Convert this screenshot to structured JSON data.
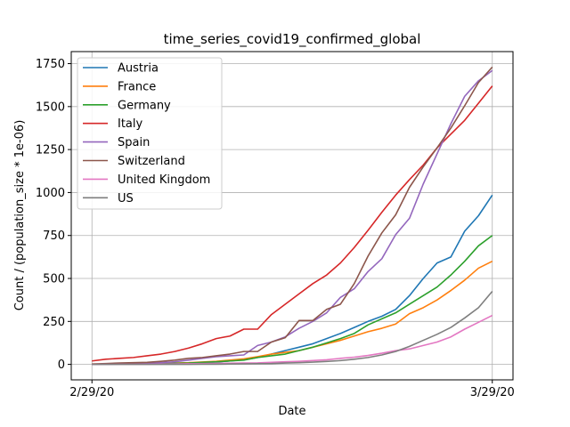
{
  "chart_data": {
    "type": "line",
    "title": "time_series_covid19_confirmed_global",
    "xlabel": "Date",
    "ylabel": "Count /  (population_size * 1e-06)",
    "x": [
      "2/29/20",
      "3/1/20",
      "3/2/20",
      "3/3/20",
      "3/4/20",
      "3/5/20",
      "3/6/20",
      "3/7/20",
      "3/8/20",
      "3/9/20",
      "3/10/20",
      "3/11/20",
      "3/12/20",
      "3/13/20",
      "3/14/20",
      "3/15/20",
      "3/16/20",
      "3/17/20",
      "3/18/20",
      "3/19/20",
      "3/20/20",
      "3/21/20",
      "3/22/20",
      "3/23/20",
      "3/24/20",
      "3/25/20",
      "3/26/20",
      "3/27/20",
      "3/28/20",
      "3/29/20"
    ],
    "xticks": [
      "2/29/20",
      "3/29/20"
    ],
    "xlim": [
      -1.5,
      30.5
    ],
    "ylim": [
      -90,
      1820
    ],
    "yticks": [
      0,
      250,
      500,
      750,
      1000,
      1250,
      1500,
      1750
    ],
    "grid": true,
    "legend_position": "upper-left",
    "series": [
      {
        "name": "Austria",
        "color": "#1f77b4",
        "values": [
          1,
          1,
          2,
          3,
          4,
          5,
          6,
          7,
          9,
          14,
          20,
          27,
          40,
          60,
          80,
          100,
          120,
          150,
          180,
          215,
          250,
          280,
          320,
          400,
          500,
          590,
          625,
          775,
          865,
          985
        ]
      },
      {
        "name": "France",
        "color": "#ff7f0e",
        "values": [
          2,
          2,
          3,
          4,
          5,
          6,
          8,
          10,
          14,
          18,
          25,
          32,
          45,
          60,
          70,
          80,
          100,
          120,
          140,
          165,
          190,
          210,
          235,
          295,
          330,
          375,
          430,
          490,
          560,
          600
        ]
      },
      {
        "name": "Germany",
        "color": "#2ca02c",
        "values": [
          1,
          2,
          2,
          2,
          3,
          4,
          6,
          8,
          12,
          15,
          20,
          25,
          40,
          50,
          60,
          80,
          100,
          125,
          150,
          180,
          230,
          265,
          300,
          350,
          400,
          450,
          520,
          600,
          690,
          750
        ]
      },
      {
        "name": "Italy",
        "color": "#d62728",
        "values": [
          20,
          30,
          35,
          40,
          50,
          60,
          75,
          95,
          120,
          150,
          165,
          205,
          205,
          290,
          350,
          410,
          470,
          520,
          590,
          680,
          780,
          885,
          985,
          1075,
          1160,
          1260,
          1340,
          1420,
          1520,
          1620
        ]
      },
      {
        "name": "Spain",
        "color": "#9467bd",
        "values": [
          1,
          2,
          3,
          5,
          7,
          10,
          15,
          25,
          35,
          45,
          50,
          55,
          110,
          130,
          160,
          210,
          250,
          300,
          390,
          440,
          540,
          615,
          755,
          850,
          1050,
          1225,
          1400,
          1560,
          1650,
          1710
        ]
      },
      {
        "name": "Switzerland",
        "color": "#8c564b",
        "values": [
          2,
          5,
          8,
          10,
          12,
          18,
          25,
          35,
          40,
          50,
          60,
          75,
          75,
          130,
          155,
          255,
          255,
          320,
          350,
          470,
          630,
          765,
          870,
          1030,
          1150,
          1260,
          1375,
          1505,
          1640,
          1730
        ]
      },
      {
        "name": "United Kingdom",
        "color": "#e377c2",
        "values": [
          0,
          0,
          1,
          1,
          1,
          2,
          3,
          4,
          5,
          6,
          7,
          8,
          9,
          12,
          15,
          18,
          22,
          27,
          35,
          42,
          52,
          65,
          80,
          90,
          110,
          130,
          160,
          205,
          245,
          285
        ]
      },
      {
        "name": "US",
        "color": "#7f7f7f",
        "values": [
          0,
          0,
          0,
          0,
          0,
          0,
          0,
          0,
          1,
          1,
          2,
          3,
          4,
          5,
          8,
          10,
          13,
          17,
          22,
          30,
          40,
          55,
          75,
          105,
          140,
          175,
          215,
          270,
          330,
          425
        ]
      }
    ]
  }
}
